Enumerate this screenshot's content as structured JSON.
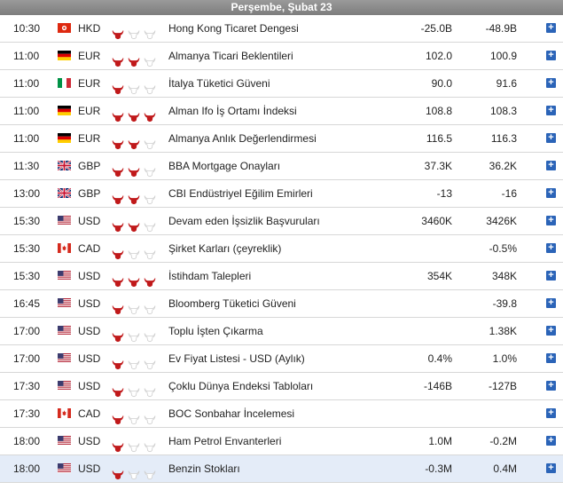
{
  "header": {
    "date": "Perşembe, Şubat 23"
  },
  "colors": {
    "bull_active": "#c0191a",
    "bull_inactive": "#ffffff",
    "highlight_row": "#e4ecf8",
    "plus_button": "#2b64b8"
  },
  "plus_label": "+",
  "rows": [
    {
      "time": "10:30",
      "flag": "hk",
      "currency": "HKD",
      "importance": 1,
      "event": "Hong Kong Ticaret Dengesi",
      "actual": "-25.0B",
      "previous": "-48.9B"
    },
    {
      "time": "11:00",
      "flag": "de",
      "currency": "EUR",
      "importance": 2,
      "event": "Almanya Ticari Beklentileri",
      "actual": "102.0",
      "previous": "100.9"
    },
    {
      "time": "11:00",
      "flag": "it",
      "currency": "EUR",
      "importance": 1,
      "event": "İtalya Tüketici Güveni",
      "actual": "90.0",
      "previous": "91.6"
    },
    {
      "time": "11:00",
      "flag": "de",
      "currency": "EUR",
      "importance": 3,
      "event": "Alman Ifo İş Ortamı İndeksi",
      "actual": "108.8",
      "previous": "108.3"
    },
    {
      "time": "11:00",
      "flag": "de",
      "currency": "EUR",
      "importance": 2,
      "event": "Almanya Anlık Değerlendirmesi",
      "actual": "116.5",
      "previous": "116.3"
    },
    {
      "time": "11:30",
      "flag": "gb",
      "currency": "GBP",
      "importance": 2,
      "event": "BBA Mortgage Onayları",
      "actual": "37.3K",
      "previous": "36.2K"
    },
    {
      "time": "13:00",
      "flag": "gb",
      "currency": "GBP",
      "importance": 2,
      "event": "CBI Endüstriyel Eğilim Emirleri",
      "actual": "-13",
      "previous": "-16"
    },
    {
      "time": "15:30",
      "flag": "us",
      "currency": "USD",
      "importance": 2,
      "event": "Devam eden İşsizlik Başvuruları",
      "actual": "3460K",
      "previous": "3426K"
    },
    {
      "time": "15:30",
      "flag": "ca",
      "currency": "CAD",
      "importance": 1,
      "event": "Şirket Karları (çeyreklik)",
      "actual": "",
      "previous": "-0.5%"
    },
    {
      "time": "15:30",
      "flag": "us",
      "currency": "USD",
      "importance": 3,
      "event": "İstihdam Talepleri",
      "actual": "354K",
      "previous": "348K"
    },
    {
      "time": "16:45",
      "flag": "us",
      "currency": "USD",
      "importance": 1,
      "event": "Bloomberg Tüketici Güveni",
      "actual": "",
      "previous": "-39.8"
    },
    {
      "time": "17:00",
      "flag": "us",
      "currency": "USD",
      "importance": 1,
      "event": "Toplu İşten Çıkarma",
      "actual": "",
      "previous": "1.38K"
    },
    {
      "time": "17:00",
      "flag": "us",
      "currency": "USD",
      "importance": 1,
      "event": "Ev Fiyat Listesi - USD (Aylık)",
      "actual": "0.4%",
      "previous": "1.0%"
    },
    {
      "time": "17:30",
      "flag": "us",
      "currency": "USD",
      "importance": 1,
      "event": "Çoklu Dünya Endeksi Tabloları",
      "actual": "-146B",
      "previous": "-127B"
    },
    {
      "time": "17:30",
      "flag": "ca",
      "currency": "CAD",
      "importance": 1,
      "event": "BOC Sonbahar İncelemesi",
      "actual": "",
      "previous": ""
    },
    {
      "time": "18:00",
      "flag": "us",
      "currency": "USD",
      "importance": 1,
      "event": "Ham Petrol Envanterleri",
      "actual": "1.0M",
      "previous": "-0.2M"
    },
    {
      "time": "18:00",
      "flag": "us",
      "currency": "USD",
      "importance": 1,
      "event": "Benzin Stokları",
      "actual": "-0.3M",
      "previous": "0.4M",
      "highlighted": true
    }
  ]
}
